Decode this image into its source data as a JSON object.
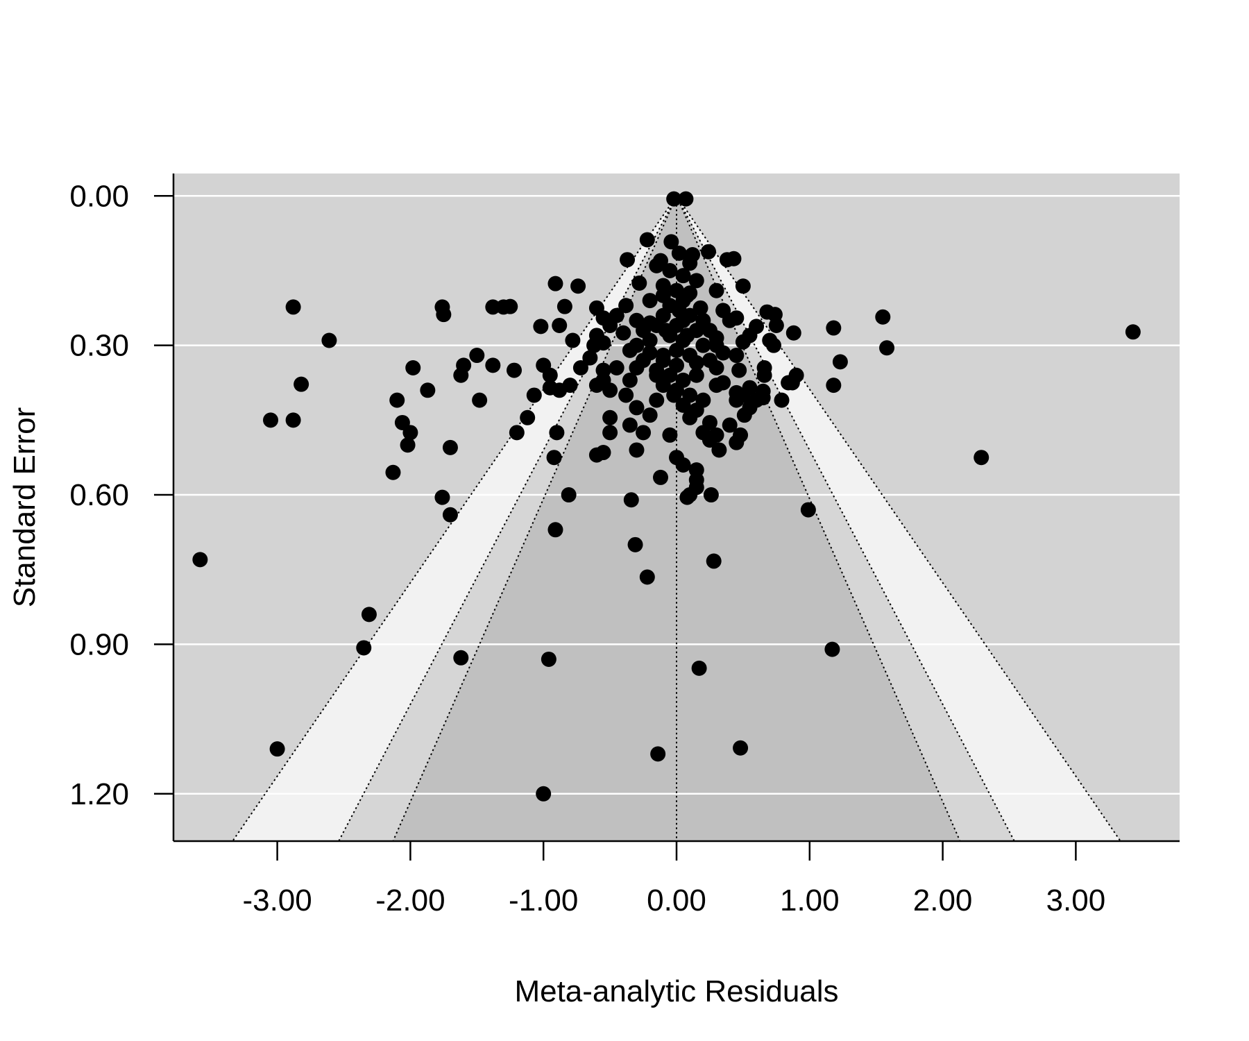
{
  "chart_data": {
    "type": "scatter",
    "title": "",
    "xlabel": "Meta-analytic Residuals",
    "ylabel": "Standard Error",
    "xlim": [
      -3.78,
      3.78
    ],
    "ylim": [
      1.295,
      -0.045
    ],
    "y_axis_inverted": true,
    "xticks": [
      -3,
      -2,
      -1,
      0,
      1,
      2,
      3
    ],
    "xtick_labels": [
      "-3.00",
      "-2.00",
      "-1.00",
      "0.00",
      "1.00",
      "2.00",
      "3.00"
    ],
    "yticks": [
      0,
      0.3,
      0.6,
      0.9,
      1.2
    ],
    "ytick_labels": [
      "0.00",
      "0.30",
      "0.60",
      "0.90",
      "1.20"
    ],
    "grid": "horizontal",
    "contour_funnel": {
      "center": 0,
      "z_levels": [
        1.645,
        1.96,
        2.576
      ],
      "region_colors": [
        "#c0c0c0",
        "#d6d6d6",
        "#f2f2f2"
      ],
      "background_color": "#d3d3d3",
      "line_style": "dotted"
    },
    "point_color": "#000000",
    "points": [
      [
        -0.02,
        0.006
      ],
      [
        0.07,
        0.006
      ],
      [
        -0.22,
        0.088
      ],
      [
        -0.04,
        0.092
      ],
      [
        0.02,
        0.115
      ],
      [
        0.12,
        0.118
      ],
      [
        0.24,
        0.112
      ],
      [
        -0.37,
        0.128
      ],
      [
        0.38,
        0.128
      ],
      [
        0.43,
        0.126
      ],
      [
        -0.12,
        0.13
      ],
      [
        0.1,
        0.135
      ],
      [
        -0.28,
        0.175
      ],
      [
        -0.91,
        0.176
      ],
      [
        -0.74,
        0.181
      ],
      [
        0.5,
        0.181
      ],
      [
        -0.1,
        0.2
      ],
      [
        0.1,
        0.195
      ],
      [
        0.3,
        0.19
      ],
      [
        -0.2,
        0.21
      ],
      [
        0.05,
        0.21
      ],
      [
        -2.88,
        0.223
      ],
      [
        -1.76,
        0.223
      ],
      [
        -1.38,
        0.223
      ],
      [
        -1.3,
        0.223
      ],
      [
        -1.25,
        0.222
      ],
      [
        -0.84,
        0.222
      ],
      [
        -0.6,
        0.225
      ],
      [
        -0.38,
        0.22
      ],
      [
        0.18,
        0.225
      ],
      [
        0.35,
        0.23
      ],
      [
        -1.75,
        0.238
      ],
      [
        0.68,
        0.233
      ],
      [
        0.74,
        0.238
      ],
      [
        -0.55,
        0.245
      ],
      [
        -0.45,
        0.24
      ],
      [
        -0.3,
        0.25
      ],
      [
        0.4,
        0.25
      ],
      [
        0.45,
        0.245
      ],
      [
        1.55,
        0.243
      ],
      [
        -0.88,
        0.26
      ],
      [
        -1.02,
        0.262
      ],
      [
        -0.5,
        0.26
      ],
      [
        -0.2,
        0.255
      ],
      [
        0.6,
        0.262
      ],
      [
        0.75,
        0.26
      ],
      [
        1.18,
        0.265
      ],
      [
        3.43,
        0.273
      ],
      [
        0.88,
        0.275
      ],
      [
        -0.6,
        0.28
      ],
      [
        -0.4,
        0.275
      ],
      [
        0.3,
        0.285
      ],
      [
        0.55,
        0.28
      ],
      [
        -2.61,
        0.29
      ],
      [
        -0.78,
        0.29
      ],
      [
        -0.55,
        0.295
      ],
      [
        0.5,
        0.293
      ],
      [
        0.7,
        0.29
      ],
      [
        -0.62,
        0.3
      ],
      [
        0.73,
        0.3
      ],
      [
        1.58,
        0.305
      ],
      [
        -0.35,
        0.31
      ],
      [
        -0.2,
        0.315
      ],
      [
        0.35,
        0.315
      ],
      [
        0.45,
        0.32
      ],
      [
        -1.5,
        0.32
      ],
      [
        -0.65,
        0.325
      ],
      [
        -0.1,
        0.33
      ],
      [
        0.15,
        0.335
      ],
      [
        -1.38,
        0.34
      ],
      [
        -1.6,
        0.34
      ],
      [
        -1.98,
        0.345
      ],
      [
        -1.22,
        0.35
      ],
      [
        -1.0,
        0.34
      ],
      [
        -0.72,
        0.345
      ],
      [
        -0.55,
        0.35
      ],
      [
        -0.45,
        0.345
      ],
      [
        -0.3,
        0.345
      ],
      [
        -0.15,
        0.35
      ],
      [
        0.3,
        0.345
      ],
      [
        0.47,
        0.35
      ],
      [
        0.66,
        0.345
      ],
      [
        0.9,
        0.36
      ],
      [
        1.23,
        0.333
      ],
      [
        -1.62,
        0.36
      ],
      [
        -0.95,
        0.36
      ],
      [
        0.66,
        0.36
      ],
      [
        -0.55,
        0.37
      ],
      [
        -0.35,
        0.37
      ],
      [
        0.35,
        0.375
      ],
      [
        0.84,
        0.375
      ],
      [
        -2.82,
        0.378
      ],
      [
        -0.8,
        0.38
      ],
      [
        -0.6,
        0.38
      ],
      [
        0.3,
        0.38
      ],
      [
        0.55,
        0.385
      ],
      [
        0.87,
        0.375
      ],
      [
        1.18,
        0.38
      ],
      [
        -0.95,
        0.385
      ],
      [
        -1.87,
        0.39
      ],
      [
        -0.88,
        0.39
      ],
      [
        -0.5,
        0.39
      ],
      [
        0.45,
        0.395
      ],
      [
        0.65,
        0.392
      ],
      [
        -1.07,
        0.4
      ],
      [
        -0.38,
        0.4
      ],
      [
        0.5,
        0.4
      ],
      [
        0.65,
        0.405
      ],
      [
        -2.1,
        0.41
      ],
      [
        -1.48,
        0.41
      ],
      [
        -0.15,
        0.41
      ],
      [
        0.2,
        0.41
      ],
      [
        0.45,
        0.41
      ],
      [
        0.6,
        0.41
      ],
      [
        0.79,
        0.41
      ],
      [
        -0.3,
        0.425
      ],
      [
        0.05,
        0.42
      ],
      [
        0.15,
        0.43
      ],
      [
        0.55,
        0.425
      ],
      [
        -3.05,
        0.45
      ],
      [
        -2.88,
        0.45
      ],
      [
        -1.12,
        0.445
      ],
      [
        -0.5,
        0.445
      ],
      [
        -0.2,
        0.44
      ],
      [
        0.1,
        0.445
      ],
      [
        0.51,
        0.44
      ],
      [
        -2.06,
        0.455
      ],
      [
        -0.35,
        0.46
      ],
      [
        0.25,
        0.455
      ],
      [
        0.4,
        0.46
      ],
      [
        -2.0,
        0.475
      ],
      [
        -1.2,
        0.475
      ],
      [
        -0.9,
        0.475
      ],
      [
        -0.5,
        0.475
      ],
      [
        -0.25,
        0.475
      ],
      [
        -0.05,
        0.48
      ],
      [
        0.2,
        0.475
      ],
      [
        0.3,
        0.48
      ],
      [
        0.48,
        0.48
      ],
      [
        -2.02,
        0.5
      ],
      [
        0.25,
        0.49
      ],
      [
        0.45,
        0.495
      ],
      [
        -1.7,
        0.505
      ],
      [
        -0.55,
        0.515
      ],
      [
        -0.3,
        0.51
      ],
      [
        0.32,
        0.51
      ],
      [
        -0.6,
        0.52
      ],
      [
        -0.92,
        0.525
      ],
      [
        0.0,
        0.525
      ],
      [
        2.29,
        0.525
      ],
      [
        0.05,
        0.54
      ],
      [
        0.15,
        0.55
      ],
      [
        -2.13,
        0.555
      ],
      [
        -0.12,
        0.565
      ],
      [
        0.15,
        0.57
      ],
      [
        0.15,
        0.585
      ],
      [
        0.1,
        0.6
      ],
      [
        0.08,
        0.605
      ],
      [
        0.26,
        0.6
      ],
      [
        -1.76,
        0.605
      ],
      [
        -0.81,
        0.6
      ],
      [
        -0.34,
        0.61
      ],
      [
        0.99,
        0.63
      ],
      [
        -1.7,
        0.64
      ],
      [
        -0.91,
        0.67
      ],
      [
        -0.31,
        0.7
      ],
      [
        -3.58,
        0.73
      ],
      [
        0.28,
        0.733
      ],
      [
        -0.22,
        0.765
      ],
      [
        -2.31,
        0.84
      ],
      [
        -2.35,
        0.907
      ],
      [
        1.17,
        0.91
      ],
      [
        -1.62,
        0.927
      ],
      [
        -0.96,
        0.93
      ],
      [
        0.17,
        0.948
      ],
      [
        -3.0,
        1.11
      ],
      [
        0.48,
        1.108
      ],
      [
        -0.14,
        1.12
      ],
      [
        -1.0,
        1.2
      ],
      [
        -0.15,
        0.14
      ],
      [
        -0.05,
        0.15
      ],
      [
        0.05,
        0.16
      ],
      [
        0.15,
        0.17
      ],
      [
        -0.1,
        0.18
      ],
      [
        0.0,
        0.19
      ],
      [
        0.08,
        0.2
      ],
      [
        -0.05,
        0.22
      ],
      [
        0.02,
        0.23
      ],
      [
        -0.1,
        0.24
      ],
      [
        0.1,
        0.24
      ],
      [
        0.2,
        0.25
      ],
      [
        -0.15,
        0.26
      ],
      [
        0.0,
        0.26
      ],
      [
        0.15,
        0.27
      ],
      [
        -0.05,
        0.28
      ],
      [
        0.05,
        0.29
      ],
      [
        -0.2,
        0.29
      ],
      [
        0.2,
        0.3
      ],
      [
        0.0,
        0.31
      ],
      [
        -0.1,
        0.32
      ],
      [
        0.1,
        0.32
      ],
      [
        0.0,
        0.34
      ],
      [
        -0.05,
        0.36
      ],
      [
        0.05,
        0.37
      ],
      [
        0.0,
        0.39
      ],
      [
        -0.08,
        0.27
      ],
      [
        0.08,
        0.28
      ],
      [
        -0.25,
        0.27
      ],
      [
        0.25,
        0.27
      ],
      [
        -0.3,
        0.3
      ],
      [
        0.3,
        0.3
      ],
      [
        -0.25,
        0.33
      ],
      [
        0.25,
        0.33
      ],
      [
        -0.15,
        0.36
      ],
      [
        0.15,
        0.36
      ],
      [
        -0.1,
        0.38
      ],
      [
        0.1,
        0.4
      ],
      [
        -0.02,
        0.4
      ],
      [
        0.05,
        0.25
      ]
    ]
  }
}
